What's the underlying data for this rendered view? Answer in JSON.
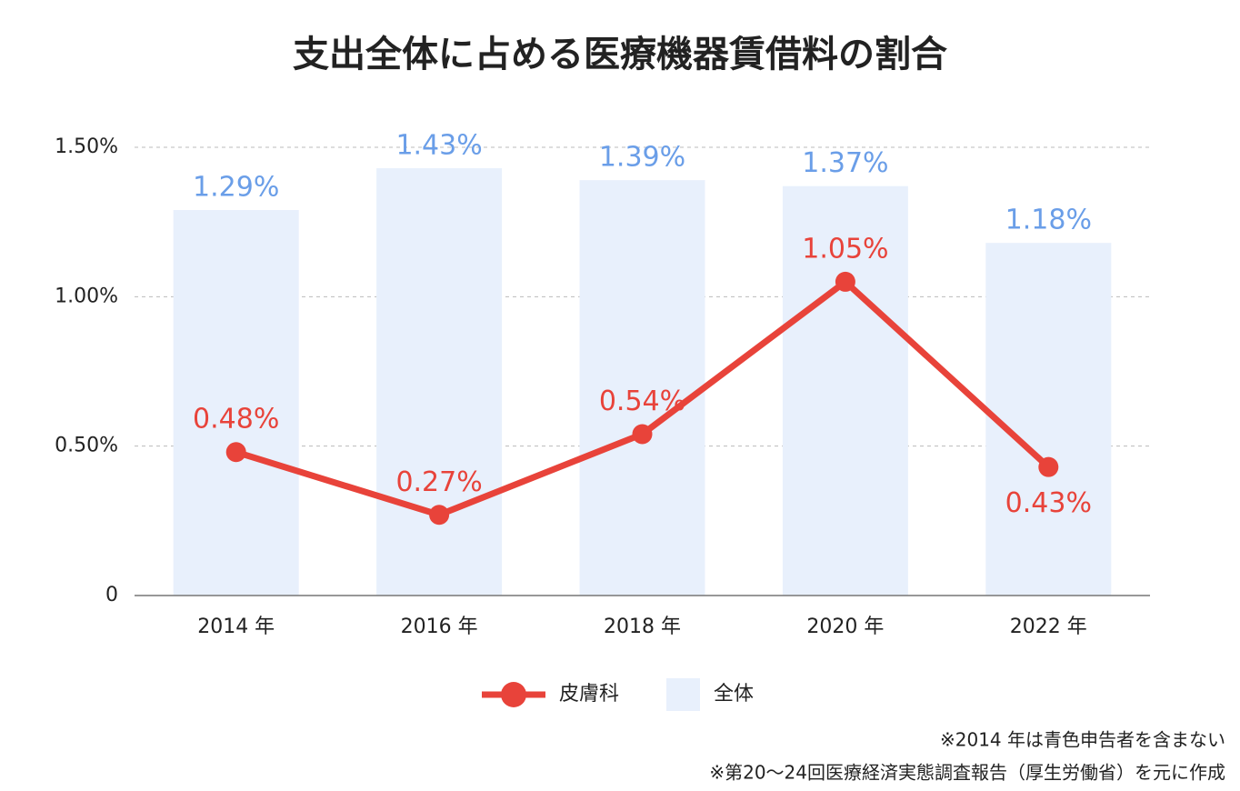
{
  "chart_data": {
    "type": "bar",
    "title": "支出全体に占める医療機器賃借料の割合",
    "categories": [
      "2014 年",
      "2016 年",
      "2018 年",
      "2020 年",
      "2022 年"
    ],
    "series": [
      {
        "name": "全体",
        "type": "bar",
        "color": "#e8f0fc",
        "label_color": "#6a9ee8",
        "values": [
          1.29,
          1.43,
          1.39,
          1.37,
          1.18
        ],
        "value_labels": [
          "1.29%",
          "1.43%",
          "1.39%",
          "1.37%",
          "1.18%"
        ]
      },
      {
        "name": "皮膚科",
        "type": "line",
        "color": "#e8433a",
        "label_color": "#e8433a",
        "values": [
          0.48,
          0.27,
          0.54,
          1.05,
          0.43
        ],
        "value_labels": [
          "0.48%",
          "0.27%",
          "0.54%",
          "1.05%",
          "0.43%"
        ]
      }
    ],
    "ylim": [
      0,
      1.5
    ],
    "yticks": [
      0,
      {
        "value": 0.5,
        "label": "0.50%"
      },
      {
        "value": 1,
        "label": "1.00%"
      },
      {
        "value": 1.5,
        "label": "1.50%"
      }
    ],
    "grid": true,
    "legend": "bottom",
    "notes": [
      "※2014 年は青色申告者を含まない",
      "※第20～24回医療経済実態調査報告（厚生労働省）を元に作成"
    ]
  }
}
